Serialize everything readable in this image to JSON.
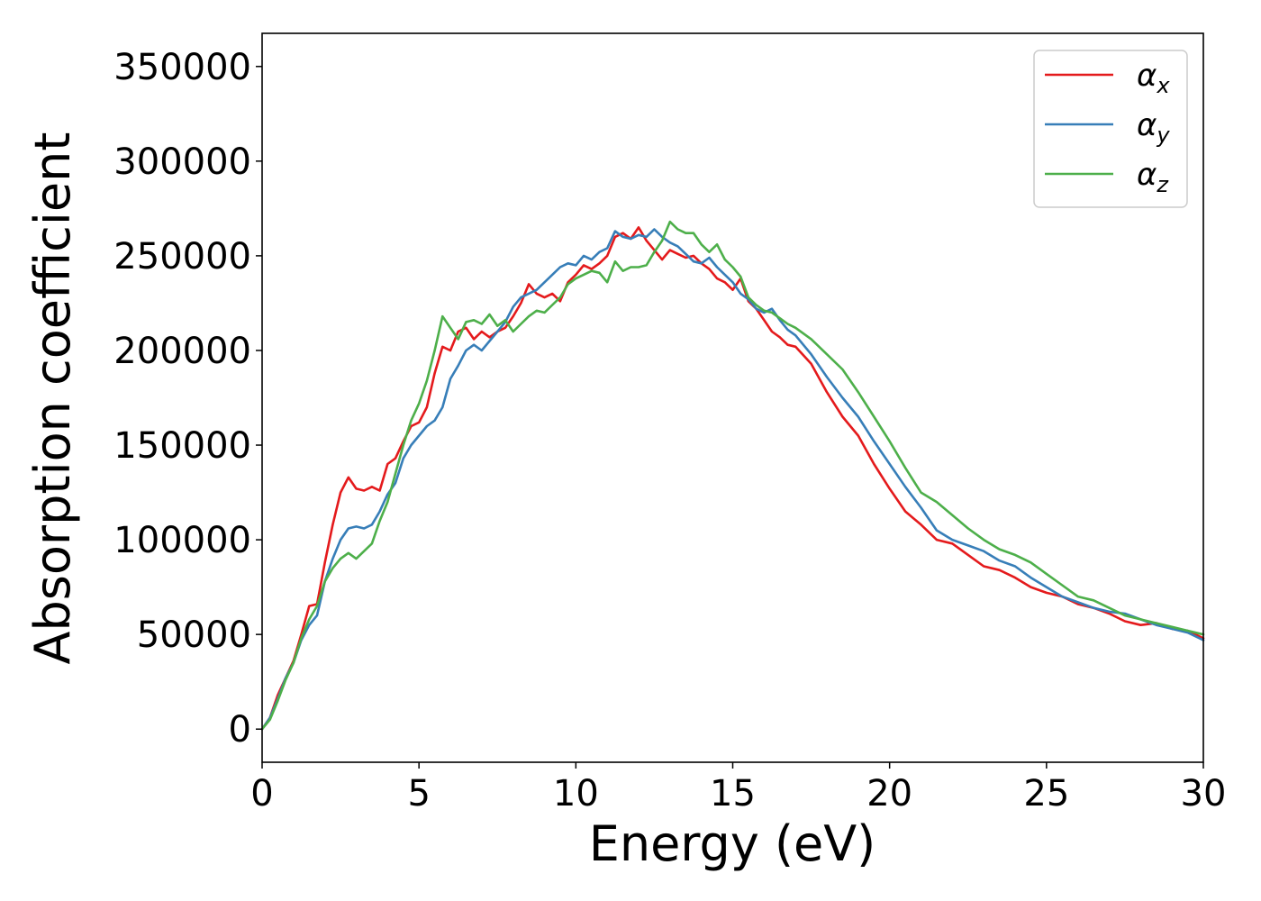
{
  "chart_data": {
    "type": "line",
    "title": "",
    "xlabel": "Energy (eV)",
    "ylabel": "Absorption coefficient",
    "xlim": [
      0,
      30
    ],
    "ylim": [
      -17500,
      367500
    ],
    "xticks": [
      0,
      5,
      10,
      15,
      20,
      25,
      30
    ],
    "xtick_labels": [
      "0",
      "5",
      "10",
      "15",
      "20",
      "25",
      "30"
    ],
    "yticks": [
      0,
      50000,
      100000,
      150000,
      200000,
      250000,
      300000,
      350000
    ],
    "ytick_labels": [
      "0",
      "50000",
      "100000",
      "150000",
      "200000",
      "250000",
      "300000",
      "350000"
    ],
    "grid": false,
    "legend_position": "top-right",
    "series": [
      {
        "name": "α_x",
        "label_base": "α",
        "label_sub": "x",
        "color": "#e41a1c",
        "x": [
          0,
          0.25,
          0.5,
          0.75,
          1,
          1.25,
          1.5,
          1.75,
          2,
          2.25,
          2.5,
          2.75,
          3,
          3.25,
          3.5,
          3.75,
          4,
          4.25,
          4.5,
          4.75,
          5,
          5.25,
          5.5,
          5.75,
          6,
          6.25,
          6.5,
          6.75,
          7,
          7.25,
          7.5,
          7.75,
          8,
          8.25,
          8.5,
          8.75,
          9,
          9.25,
          9.5,
          9.75,
          10,
          10.25,
          10.5,
          10.75,
          11,
          11.25,
          11.5,
          11.75,
          12,
          12.25,
          12.5,
          12.75,
          13,
          13.25,
          13.5,
          13.75,
          14,
          14.25,
          14.5,
          14.75,
          15,
          15.25,
          15.5,
          15.75,
          16,
          16.25,
          16.5,
          16.75,
          17,
          17.5,
          18,
          18.5,
          19,
          19.5,
          20,
          20.5,
          21,
          21.5,
          22,
          22.5,
          23,
          23.5,
          24,
          24.5,
          25,
          25.5,
          26,
          26.5,
          27,
          27.5,
          28,
          28.5,
          29,
          29.5,
          30
        ],
        "values": [
          0,
          6000,
          18000,
          27000,
          36000,
          50000,
          65000,
          66000,
          88000,
          108000,
          125000,
          133000,
          127000,
          126000,
          128000,
          126000,
          140000,
          143000,
          152000,
          160000,
          162000,
          170000,
          188000,
          202000,
          200000,
          210000,
          212000,
          206000,
          210000,
          207000,
          210000,
          212000,
          218000,
          225000,
          235000,
          230000,
          228000,
          230000,
          226000,
          236000,
          240000,
          245000,
          243000,
          246000,
          250000,
          260000,
          262000,
          259000,
          265000,
          258000,
          253000,
          248000,
          253000,
          251000,
          249000,
          250000,
          246000,
          243000,
          238000,
          236000,
          232000,
          238000,
          226000,
          222000,
          216000,
          210000,
          207000,
          203000,
          202000,
          193000,
          178000,
          165000,
          155000,
          140000,
          127000,
          115000,
          108000,
          100000,
          98000,
          92000,
          86000,
          84000,
          80000,
          75000,
          72000,
          70000,
          66000,
          64000,
          61000,
          57000,
          55000,
          56000,
          53000,
          52000,
          48000
        ]
      },
      {
        "name": "α_y",
        "label_base": "α",
        "label_sub": "y",
        "color": "#377eb8",
        "x": [
          0,
          0.25,
          0.5,
          0.75,
          1,
          1.25,
          1.5,
          1.75,
          2,
          2.25,
          2.5,
          2.75,
          3,
          3.25,
          3.5,
          3.75,
          4,
          4.25,
          4.5,
          4.75,
          5,
          5.25,
          5.5,
          5.75,
          6,
          6.25,
          6.5,
          6.75,
          7,
          7.25,
          7.5,
          7.75,
          8,
          8.25,
          8.5,
          8.75,
          9,
          9.25,
          9.5,
          9.75,
          10,
          10.25,
          10.5,
          10.75,
          11,
          11.25,
          11.5,
          11.75,
          12,
          12.25,
          12.5,
          12.75,
          13,
          13.25,
          13.5,
          13.75,
          14,
          14.25,
          14.5,
          14.75,
          15,
          15.25,
          15.5,
          15.75,
          16,
          16.25,
          16.5,
          16.75,
          17,
          17.5,
          18,
          18.5,
          19,
          19.5,
          20,
          20.5,
          21,
          21.5,
          22,
          22.5,
          23,
          23.5,
          24,
          24.5,
          25,
          25.5,
          26,
          26.5,
          27,
          27.5,
          28,
          28.5,
          29,
          29.5,
          30
        ],
        "values": [
          0,
          6000,
          16000,
          27000,
          35000,
          47000,
          55000,
          60000,
          78000,
          90000,
          100000,
          106000,
          107000,
          106000,
          108000,
          115000,
          124000,
          130000,
          143000,
          150000,
          155000,
          160000,
          163000,
          170000,
          185000,
          192000,
          200000,
          203000,
          200000,
          205000,
          210000,
          215000,
          223000,
          228000,
          230000,
          232000,
          236000,
          240000,
          244000,
          246000,
          245000,
          250000,
          248000,
          252000,
          254000,
          263000,
          260000,
          259000,
          261000,
          260000,
          264000,
          260000,
          257000,
          255000,
          251000,
          247000,
          246000,
          249000,
          244000,
          240000,
          236000,
          230000,
          227000,
          222000,
          220000,
          222000,
          216000,
          211000,
          208000,
          198000,
          186000,
          175000,
          165000,
          152000,
          140000,
          128000,
          117000,
          105000,
          100000,
          97000,
          94000,
          89000,
          86000,
          80000,
          75000,
          70000,
          67000,
          64000,
          62000,
          61000,
          58000,
          55000,
          53000,
          51000,
          47000
        ]
      },
      {
        "name": "α_z",
        "label_base": "α",
        "label_sub": "z",
        "color": "#4daf4a",
        "x": [
          0,
          0.25,
          0.5,
          0.75,
          1,
          1.25,
          1.5,
          1.75,
          2,
          2.25,
          2.5,
          2.75,
          3,
          3.25,
          3.5,
          3.75,
          4,
          4.25,
          4.5,
          4.75,
          5,
          5.25,
          5.5,
          5.75,
          6,
          6.25,
          6.5,
          6.75,
          7,
          7.25,
          7.5,
          7.75,
          8,
          8.25,
          8.5,
          8.75,
          9,
          9.25,
          9.5,
          9.75,
          10,
          10.25,
          10.5,
          10.75,
          11,
          11.25,
          11.5,
          11.75,
          12,
          12.25,
          12.5,
          12.75,
          13,
          13.25,
          13.5,
          13.75,
          14,
          14.25,
          14.5,
          14.75,
          15,
          15.25,
          15.5,
          15.75,
          16,
          16.25,
          16.5,
          16.75,
          17,
          17.5,
          18,
          18.5,
          19,
          19.5,
          20,
          20.5,
          21,
          21.5,
          22,
          22.5,
          23,
          23.5,
          24,
          24.5,
          25,
          25.5,
          26,
          26.5,
          27,
          27.5,
          28,
          28.5,
          29,
          29.5,
          30
        ],
        "values": [
          0,
          5000,
          15000,
          26000,
          35000,
          48000,
          58000,
          65000,
          78000,
          85000,
          90000,
          93000,
          90000,
          94000,
          98000,
          110000,
          120000,
          135000,
          150000,
          163000,
          172000,
          184000,
          200000,
          218000,
          212000,
          206000,
          215000,
          216000,
          214000,
          219000,
          213000,
          216000,
          210000,
          214000,
          218000,
          221000,
          220000,
          224000,
          228000,
          235000,
          238000,
          240000,
          242000,
          241000,
          236000,
          247000,
          242000,
          244000,
          244000,
          245000,
          252000,
          258000,
          268000,
          264000,
          262000,
          262000,
          256000,
          252000,
          256000,
          248000,
          244000,
          239000,
          228000,
          224000,
          221000,
          220000,
          217000,
          214000,
          212000,
          206000,
          198000,
          190000,
          178000,
          165000,
          152000,
          138000,
          125000,
          120000,
          113000,
          106000,
          100000,
          95000,
          92000,
          88000,
          82000,
          76000,
          70000,
          68000,
          64000,
          60000,
          58000,
          56000,
          54000,
          52000,
          50000
        ]
      }
    ]
  }
}
